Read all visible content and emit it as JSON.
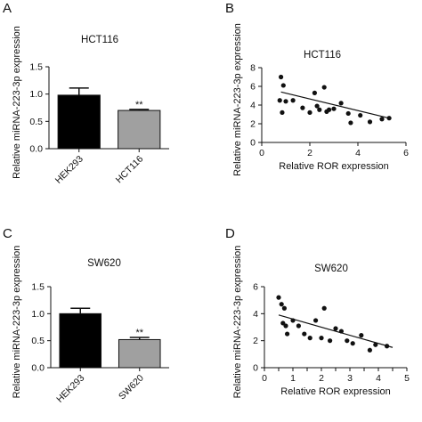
{
  "panels": [
    {
      "letter": "A",
      "chart_data": {
        "type": "bar",
        "title": "HCT116",
        "ylabel": "Relative miRNA-223-3p expression",
        "xlabel": "",
        "categories": [
          "HEK293",
          "HCT116"
        ],
        "values": [
          0.98,
          0.7
        ],
        "errors": [
          0.13,
          0.02
        ],
        "bar_colors": [
          "#000000",
          "#a0a0a0"
        ],
        "annotations": [
          "",
          "**"
        ],
        "ylim": [
          0,
          1.5
        ],
        "yticks": [
          0.0,
          0.5,
          1.0,
          1.5
        ],
        "ytick_labels": [
          "0.0",
          "0.5",
          "1.0",
          "1.5"
        ]
      }
    },
    {
      "letter": "B",
      "chart_data": {
        "type": "scatter",
        "title": "HCT116",
        "xlabel": "Relative ROR expression",
        "ylabel": "Relative miRNA-223-3p expression",
        "xlim": [
          0,
          6
        ],
        "ylim": [
          0,
          8
        ],
        "xticks": [
          0,
          2,
          4,
          6
        ],
        "yticks": [
          0,
          2,
          4,
          6,
          8
        ],
        "x": [
          0.8,
          0.9,
          0.75,
          0.85,
          1.0,
          1.3,
          1.7,
          2.0,
          2.2,
          2.3,
          2.4,
          2.6,
          2.7,
          2.8,
          3.0,
          3.3,
          3.6,
          3.7,
          4.1,
          4.5,
          5.0,
          5.3
        ],
        "y": [
          7.0,
          6.1,
          4.5,
          3.2,
          4.4,
          4.5,
          3.7,
          3.2,
          5.3,
          3.9,
          3.5,
          5.9,
          3.3,
          3.5,
          3.6,
          4.2,
          3.1,
          2.1,
          2.9,
          2.2,
          2.5,
          2.6
        ],
        "fit": {
          "x": [
            0.8,
            5.3
          ],
          "y": [
            5.4,
            2.6
          ]
        }
      }
    },
    {
      "letter": "C",
      "chart_data": {
        "type": "bar",
        "title": "SW620",
        "ylabel": "Relative miRNA-223-3p expression",
        "xlabel": "",
        "categories": [
          "HEK293",
          "SW620"
        ],
        "values": [
          1.0,
          0.52
        ],
        "errors": [
          0.1,
          0.04
        ],
        "bar_colors": [
          "#000000",
          "#a0a0a0"
        ],
        "annotations": [
          "",
          "**"
        ],
        "ylim": [
          0,
          1.5
        ],
        "yticks": [
          0.0,
          0.5,
          1.0,
          1.5
        ],
        "ytick_labels": [
          "0.0",
          "0.5",
          "1.0",
          "1.5"
        ]
      }
    },
    {
      "letter": "D",
      "chart_data": {
        "type": "scatter",
        "title": "SW620",
        "xlabel": "Relative ROR expression",
        "ylabel": "Relative miRNA-223-3p expression",
        "xlim": [
          0,
          5
        ],
        "ylim": [
          0,
          6
        ],
        "xticks": [
          0,
          0.5,
          1,
          1.5,
          2,
          2.5,
          3,
          3.5,
          4,
          4.5,
          5
        ],
        "xtick_labels": [
          "0",
          "",
          "1",
          "",
          "2",
          "",
          "3",
          "",
          "4",
          "",
          "5"
        ],
        "yticks": [
          0,
          2,
          4,
          6
        ],
        "x": [
          0.5,
          0.6,
          0.7,
          0.75,
          0.8,
          0.65,
          1.0,
          1.2,
          1.4,
          1.6,
          1.8,
          2.0,
          2.1,
          2.3,
          2.5,
          2.7,
          2.9,
          3.1,
          3.4,
          3.7,
          3.9,
          4.3
        ],
        "y": [
          5.2,
          4.7,
          4.4,
          3.1,
          2.5,
          3.3,
          3.5,
          3.1,
          2.5,
          2.2,
          3.5,
          2.2,
          4.4,
          2.0,
          2.9,
          2.7,
          2.0,
          1.8,
          2.4,
          1.3,
          1.7,
          1.6
        ],
        "fit": {
          "x": [
            0.5,
            4.5
          ],
          "y": [
            3.9,
            1.5
          ]
        }
      }
    }
  ]
}
